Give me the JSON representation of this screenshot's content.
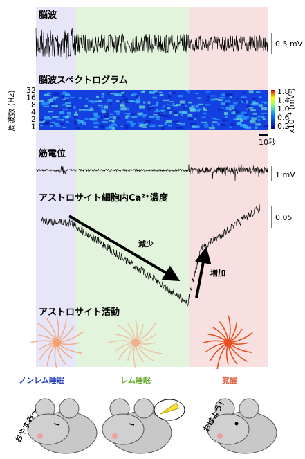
{
  "panels": {
    "eeg": {
      "title": "脳波",
      "scale": "0.5 mV"
    },
    "spectrogram": {
      "title": "脳波スペクトログラム",
      "ylabel": "周波数 (Hz)",
      "yticks": [
        "32",
        "16",
        "8",
        "4",
        "2",
        "1"
      ],
      "colorbar_ticks": [
        "1.8",
        "1.4",
        "1.0",
        "0.6",
        "0.2"
      ],
      "colorbar_label": "x10⁻⁴ (mV²)",
      "time_scale": "10秒"
    },
    "emg": {
      "title": "筋電位",
      "scale": "1 mV"
    },
    "calcium": {
      "title": "アストロサイト細胞内Ca²⁺濃度",
      "scale": "0.05",
      "decrease": "減少",
      "increase": "増加"
    },
    "activity": {
      "title": "アストロサイト活動"
    }
  },
  "states": [
    "ノンレム睡眠",
    "レム睡眠",
    "覚醒"
  ],
  "speech": {
    "sleep": "おやすみ～",
    "wake": "おはよう！"
  }
}
